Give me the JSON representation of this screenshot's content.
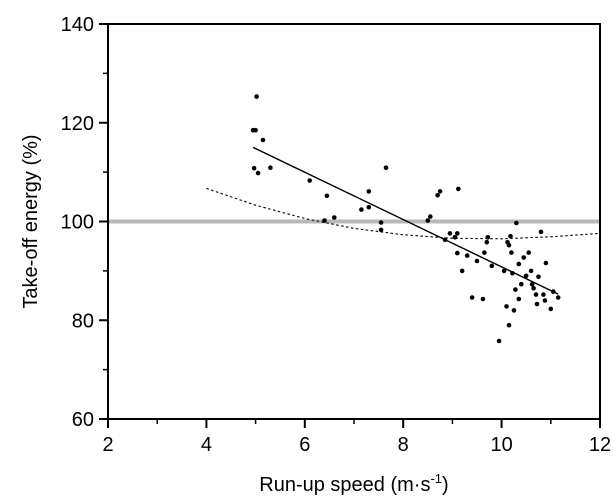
{
  "chart_data": {
    "type": "scatter",
    "title": "",
    "xlabel": "Run-up speed (m·s",
    "xlabel_superscript": "-1",
    "xlabel_close": ")",
    "ylabel": "Take-off energy (%)",
    "xlim": [
      2,
      12
    ],
    "ylim": [
      60,
      140
    ],
    "x_ticks": [
      2,
      4,
      6,
      8,
      10,
      12
    ],
    "y_ticks": [
      60,
      80,
      100,
      120,
      140
    ],
    "x_minor_ticks": [
      3,
      5,
      7,
      9,
      11
    ],
    "y_minor_ticks": [
      70,
      90,
      110,
      130
    ],
    "grid": false,
    "legend": "none",
    "reference_line": {
      "y": 100,
      "color": "#b8b8b8"
    },
    "points": [
      {
        "x": 4.95,
        "y": 118.5
      },
      {
        "x": 5.0,
        "y": 118.5
      },
      {
        "x": 5.02,
        "y": 125.3
      },
      {
        "x": 4.97,
        "y": 110.8
      },
      {
        "x": 5.05,
        "y": 109.8
      },
      {
        "x": 5.15,
        "y": 116.5
      },
      {
        "x": 5.3,
        "y": 110.9
      },
      {
        "x": 6.1,
        "y": 108.3
      },
      {
        "x": 6.4,
        "y": 100.2
      },
      {
        "x": 6.45,
        "y": 105.2
      },
      {
        "x": 6.6,
        "y": 100.8
      },
      {
        "x": 7.15,
        "y": 102.4
      },
      {
        "x": 7.3,
        "y": 106.1
      },
      {
        "x": 7.3,
        "y": 102.9
      },
      {
        "x": 7.55,
        "y": 99.8
      },
      {
        "x": 7.55,
        "y": 98.3
      },
      {
        "x": 7.65,
        "y": 110.9
      },
      {
        "x": 8.5,
        "y": 100.2
      },
      {
        "x": 8.55,
        "y": 101.0
      },
      {
        "x": 8.7,
        "y": 105.3
      },
      {
        "x": 8.75,
        "y": 106.1
      },
      {
        "x": 8.85,
        "y": 96.3
      },
      {
        "x": 8.95,
        "y": 97.6
      },
      {
        "x": 9.05,
        "y": 96.8
      },
      {
        "x": 9.1,
        "y": 97.6
      },
      {
        "x": 9.1,
        "y": 93.6
      },
      {
        "x": 9.12,
        "y": 106.6
      },
      {
        "x": 9.2,
        "y": 90.0
      },
      {
        "x": 9.3,
        "y": 93.1
      },
      {
        "x": 9.4,
        "y": 84.6
      },
      {
        "x": 9.5,
        "y": 92.0
      },
      {
        "x": 9.62,
        "y": 84.3
      },
      {
        "x": 9.65,
        "y": 93.7
      },
      {
        "x": 9.7,
        "y": 95.8
      },
      {
        "x": 9.72,
        "y": 96.8
      },
      {
        "x": 9.8,
        "y": 91.0
      },
      {
        "x": 9.95,
        "y": 75.8
      },
      {
        "x": 10.05,
        "y": 90.0
      },
      {
        "x": 10.1,
        "y": 82.8
      },
      {
        "x": 10.15,
        "y": 79.0
      },
      {
        "x": 10.12,
        "y": 95.8
      },
      {
        "x": 10.15,
        "y": 95.2
      },
      {
        "x": 10.18,
        "y": 97.0
      },
      {
        "x": 10.2,
        "y": 93.7
      },
      {
        "x": 10.22,
        "y": 89.5
      },
      {
        "x": 10.25,
        "y": 82.0
      },
      {
        "x": 10.28,
        "y": 86.2
      },
      {
        "x": 10.3,
        "y": 99.7
      },
      {
        "x": 10.35,
        "y": 91.4
      },
      {
        "x": 10.35,
        "y": 84.3
      },
      {
        "x": 10.4,
        "y": 87.3
      },
      {
        "x": 10.45,
        "y": 92.7
      },
      {
        "x": 10.5,
        "y": 89.0
      },
      {
        "x": 10.55,
        "y": 93.7
      },
      {
        "x": 10.6,
        "y": 90.0
      },
      {
        "x": 10.62,
        "y": 87.3
      },
      {
        "x": 10.65,
        "y": 86.5
      },
      {
        "x": 10.7,
        "y": 85.2
      },
      {
        "x": 10.72,
        "y": 83.3
      },
      {
        "x": 10.75,
        "y": 88.8
      },
      {
        "x": 10.8,
        "y": 97.9
      },
      {
        "x": 10.85,
        "y": 85.2
      },
      {
        "x": 10.88,
        "y": 84.0
      },
      {
        "x": 10.9,
        "y": 91.6
      },
      {
        "x": 11.0,
        "y": 82.3
      },
      {
        "x": 11.15,
        "y": 84.6
      },
      {
        "x": 11.05,
        "y": 85.8
      }
    ],
    "series": [
      {
        "type": "line",
        "style": "solid",
        "x": [
          4.95,
          11.15
        ],
        "y": [
          115.0,
          85.3
        ]
      },
      {
        "type": "line",
        "style": "dotted",
        "x": [
          4.0,
          5.0,
          6.0,
          7.0,
          8.0,
          9.0,
          10.0,
          11.0,
          12.0
        ],
        "y": [
          106.7,
          103.3,
          100.6,
          98.6,
          97.3,
          96.6,
          96.5,
          96.9,
          97.6
        ]
      }
    ]
  }
}
